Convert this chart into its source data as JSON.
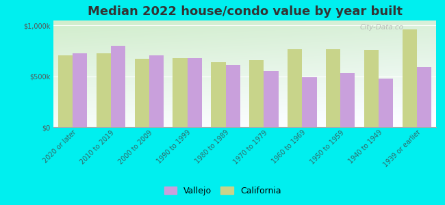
{
  "title": "Median 2022 house/condo value by year built",
  "categories": [
    "2020 or later",
    "2010 to 2019",
    "2000 to 2009",
    "1990 to 1999",
    "1980 to 1989",
    "1970 to 1979",
    "1960 to 1969",
    "1950 to 1959",
    "1940 to 1949",
    "1939 or earlier"
  ],
  "vallejo": [
    730000,
    800000,
    710000,
    680000,
    610000,
    550000,
    490000,
    530000,
    480000,
    590000
  ],
  "california": [
    710000,
    730000,
    670000,
    680000,
    640000,
    660000,
    770000,
    770000,
    760000,
    960000
  ],
  "vallejo_color": "#c9a0dc",
  "california_color": "#c8d48a",
  "background_color": "#00efef",
  "ylabel_ticks": [
    "$0",
    "$500k",
    "$1,000k"
  ],
  "ytick_vals": [
    0,
    500000,
    1000000
  ],
  "ylim": [
    0,
    1050000
  ],
  "watermark": "City-Data.co",
  "legend_vallejo": "Vallejo",
  "legend_california": "California",
  "bar_width": 0.38,
  "title_fontsize": 13,
  "tick_fontsize": 7,
  "legend_fontsize": 9
}
